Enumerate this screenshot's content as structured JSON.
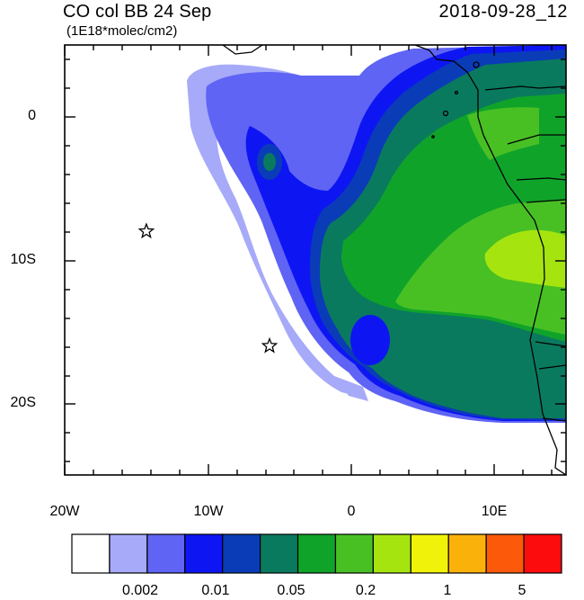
{
  "title": {
    "field": "CO col BB 24 Sep",
    "units": "(1E18*molec/cm2)",
    "datetime": "2018-09-28_12"
  },
  "map": {
    "x_ticks": [
      "20W",
      "10W",
      "0",
      "10E"
    ],
    "y_ticks": [
      "0",
      "10S",
      "20S"
    ],
    "lon_range": [
      -20,
      15
    ],
    "lat_range": [
      -25,
      5
    ],
    "markers": [
      {
        "type": "star",
        "lon": -14.3,
        "lat": -8
      },
      {
        "type": "star",
        "lon": -5.7,
        "lat": -16
      }
    ]
  },
  "colorbar": {
    "colors": [
      "#ffffff",
      "#a6aaf8",
      "#5f64f4",
      "#0d16f2",
      "#0a3cb8",
      "#0a7a5e",
      "#10a32a",
      "#48c024",
      "#a6e410",
      "#f0f20a",
      "#fab10a",
      "#fc5a0a",
      "#fc0c0c"
    ],
    "labels": [
      "0.002",
      "0.01",
      "0.05",
      "0.2",
      "1",
      "5"
    ]
  }
}
